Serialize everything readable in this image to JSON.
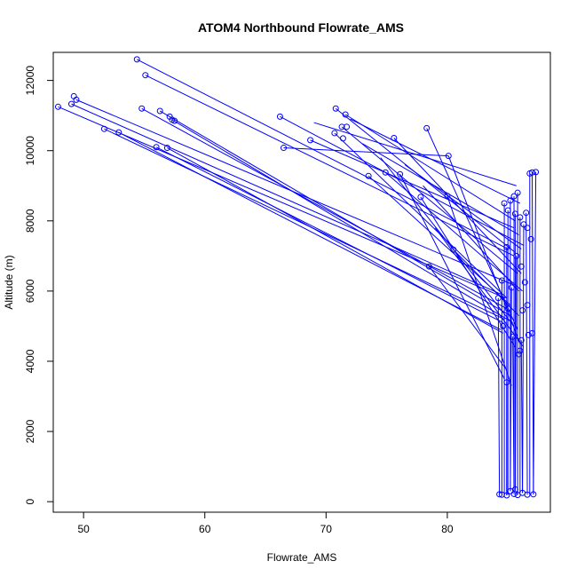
{
  "chart_data": {
    "type": "scatter",
    "title": "ATOM4 Northbound Flowrate_AMS",
    "xlabel": "Flowrate_AMS",
    "ylabel": "Altitude (m)",
    "xlim": [
      47.5,
      88.5
    ],
    "ylim": [
      -300,
      12800
    ],
    "xticks": [
      50,
      60,
      70,
      80
    ],
    "yticks": [
      0,
      2000,
      4000,
      6000,
      8000,
      10000,
      12000
    ],
    "grid": false,
    "series_color": "#0000ff",
    "points": [
      [
        54.4,
        12600
      ],
      [
        55.1,
        12150
      ],
      [
        49.2,
        11550
      ],
      [
        49.4,
        11450
      ],
      [
        47.9,
        11250
      ],
      [
        49.0,
        11330
      ],
      [
        54.8,
        11200
      ],
      [
        56.3,
        11130
      ],
      [
        57.1,
        10970
      ],
      [
        57.3,
        10880
      ],
      [
        57.5,
        10850
      ],
      [
        51.7,
        10620
      ],
      [
        52.9,
        10520
      ],
      [
        56.0,
        10100
      ],
      [
        56.9,
        10080
      ],
      [
        70.8,
        11200
      ],
      [
        66.2,
        10970
      ],
      [
        71.6,
        11030
      ],
      [
        71.3,
        10680
      ],
      [
        71.7,
        10680
      ],
      [
        70.7,
        10500
      ],
      [
        68.7,
        10300
      ],
      [
        71.4,
        10350
      ],
      [
        66.5,
        10080
      ],
      [
        75.6,
        10360
      ],
      [
        78.3,
        10640
      ],
      [
        80.1,
        9850
      ],
      [
        73.5,
        9280
      ],
      [
        74.9,
        9380
      ],
      [
        76.1,
        9330
      ],
      [
        77.8,
        8680
      ],
      [
        80.0,
        8710
      ],
      [
        78.5,
        6700
      ],
      [
        80.5,
        7180
      ],
      [
        84.7,
        8500
      ],
      [
        85.2,
        8580
      ],
      [
        85.5,
        8700
      ],
      [
        85.8,
        8800
      ],
      [
        85.0,
        8300
      ],
      [
        85.6,
        8200
      ],
      [
        86.0,
        8100
      ],
      [
        86.3,
        7900
      ],
      [
        86.8,
        9350
      ],
      [
        87.0,
        9380
      ],
      [
        87.3,
        9390
      ],
      [
        86.5,
        8230
      ],
      [
        86.6,
        7800
      ],
      [
        86.9,
        7480
      ],
      [
        84.9,
        7250
      ],
      [
        85.7,
        7000
      ],
      [
        86.1,
        6700
      ],
      [
        84.5,
        6300
      ],
      [
        85.3,
        6100
      ],
      [
        86.4,
        6250
      ],
      [
        84.2,
        5800
      ],
      [
        85.0,
        5500
      ],
      [
        86.2,
        5450
      ],
      [
        86.6,
        5600
      ],
      [
        84.6,
        5000
      ],
      [
        85.4,
        4700
      ],
      [
        86.1,
        4600
      ],
      [
        86.7,
        4750
      ],
      [
        87.0,
        4800
      ],
      [
        84.9,
        3400
      ],
      [
        86.0,
        4300
      ],
      [
        85.9,
        4200
      ],
      [
        84.5,
        200
      ],
      [
        84.9,
        180
      ],
      [
        85.5,
        220
      ],
      [
        85.8,
        190
      ],
      [
        86.2,
        250
      ],
      [
        86.6,
        200
      ],
      [
        87.1,
        210
      ],
      [
        85.2,
        300
      ],
      [
        85.6,
        350
      ],
      [
        84.3,
        210
      ]
    ],
    "lines": [
      [
        [
          54.4,
          12600
        ],
        [
          85.0,
          7200
        ]
      ],
      [
        [
          55.1,
          12150
        ],
        [
          85.5,
          7000
        ]
      ],
      [
        [
          49.4,
          11450
        ],
        [
          85.3,
          6200
        ]
      ],
      [
        [
          47.9,
          11250
        ],
        [
          84.8,
          5800
        ]
      ],
      [
        [
          49.0,
          11330
        ],
        [
          84.5,
          5900
        ]
      ],
      [
        [
          54.8,
          11200
        ],
        [
          84.9,
          5500
        ]
      ],
      [
        [
          56.3,
          11130
        ],
        [
          85.2,
          5300
        ]
      ],
      [
        [
          57.3,
          10880
        ],
        [
          85.4,
          5100
        ]
      ],
      [
        [
          51.7,
          10620
        ],
        [
          84.7,
          5200
        ]
      ],
      [
        [
          52.9,
          10520
        ],
        [
          84.4,
          4900
        ]
      ],
      [
        [
          56.0,
          10100
        ],
        [
          84.6,
          5100
        ]
      ],
      [
        [
          56.9,
          10080
        ],
        [
          84.6,
          4800
        ]
      ],
      [
        [
          70.8,
          11200
        ],
        [
          85.6,
          7100
        ]
      ],
      [
        [
          66.2,
          10970
        ],
        [
          86.3,
          7300
        ]
      ],
      [
        [
          71.6,
          11030
        ],
        [
          85.6,
          8000
        ]
      ],
      [
        [
          71.3,
          10680
        ],
        [
          85.8,
          6500
        ]
      ],
      [
        [
          70.7,
          10500
        ],
        [
          84.9,
          5800
        ]
      ],
      [
        [
          68.7,
          10300
        ],
        [
          85.5,
          7800
        ]
      ],
      [
        [
          66.5,
          10080
        ],
        [
          80.1,
          9850
        ]
      ],
      [
        [
          75.6,
          10360
        ],
        [
          86.1,
          6500
        ]
      ],
      [
        [
          78.3,
          10640
        ],
        [
          85.8,
          4900
        ]
      ],
      [
        [
          80.1,
          9850
        ],
        [
          86.0,
          4500
        ]
      ],
      [
        [
          73.5,
          9280
        ],
        [
          85.2,
          5600
        ]
      ],
      [
        [
          74.9,
          9380
        ],
        [
          86.2,
          6000
        ]
      ],
      [
        [
          76.1,
          9330
        ],
        [
          84.7,
          3500
        ]
      ],
      [
        [
          77.8,
          8680
        ],
        [
          85.6,
          4400
        ]
      ],
      [
        [
          80.0,
          8710
        ],
        [
          85.3,
          3300
        ]
      ],
      [
        [
          72.0,
          10900
        ],
        [
          86.0,
          8500
        ]
      ],
      [
        [
          69.0,
          10800
        ],
        [
          85.7,
          9000
        ]
      ],
      [
        [
          73.0,
          10200
        ],
        [
          85.9,
          7600
        ]
      ],
      [
        [
          74.5,
          9800
        ],
        [
          85.5,
          5000
        ]
      ],
      [
        [
          76.5,
          9600
        ],
        [
          86.1,
          7200
        ]
      ],
      [
        [
          78.0,
          9000
        ],
        [
          85.9,
          6000
        ]
      ],
      [
        [
          78.5,
          6700
        ],
        [
          84.8,
          3800
        ]
      ],
      [
        [
          80.5,
          7180
        ],
        [
          85.9,
          5300
        ]
      ],
      [
        [
          79.0,
          7800
        ],
        [
          86.3,
          4400
        ]
      ],
      [
        [
          84.7,
          8500
        ],
        [
          84.7,
          200
        ]
      ],
      [
        [
          85.0,
          8300
        ],
        [
          85.0,
          200
        ]
      ],
      [
        [
          85.2,
          8580
        ],
        [
          85.2,
          300
        ]
      ],
      [
        [
          85.5,
          8700
        ],
        [
          85.5,
          220
        ]
      ],
      [
        [
          85.8,
          8800
        ],
        [
          85.8,
          190
        ]
      ],
      [
        [
          86.0,
          8100
        ],
        [
          86.0,
          250
        ]
      ],
      [
        [
          86.3,
          7900
        ],
        [
          86.2,
          250
        ]
      ],
      [
        [
          86.5,
          8230
        ],
        [
          86.6,
          200
        ]
      ],
      [
        [
          86.8,
          9350
        ],
        [
          86.8,
          200
        ]
      ],
      [
        [
          87.0,
          9380
        ],
        [
          87.1,
          210
        ]
      ],
      [
        [
          87.3,
          9390
        ],
        [
          87.1,
          210
        ]
      ],
      [
        [
          84.9,
          7250
        ],
        [
          84.9,
          180
        ]
      ],
      [
        [
          85.7,
          7000
        ],
        [
          85.6,
          350
        ]
      ],
      [
        [
          84.5,
          6300
        ],
        [
          84.5,
          200
        ]
      ],
      [
        [
          84.2,
          5800
        ],
        [
          84.3,
          210
        ]
      ],
      [
        [
          85.4,
          4700
        ],
        [
          85.5,
          220
        ]
      ],
      [
        [
          86.1,
          4600
        ],
        [
          86.2,
          250
        ]
      ],
      [
        [
          84.9,
          3400
        ],
        [
          84.9,
          180
        ]
      ],
      [
        [
          85.6,
          8200
        ],
        [
          85.6,
          300
        ]
      ],
      [
        [
          85.3,
          6100
        ],
        [
          85.2,
          300
        ]
      ]
    ]
  }
}
